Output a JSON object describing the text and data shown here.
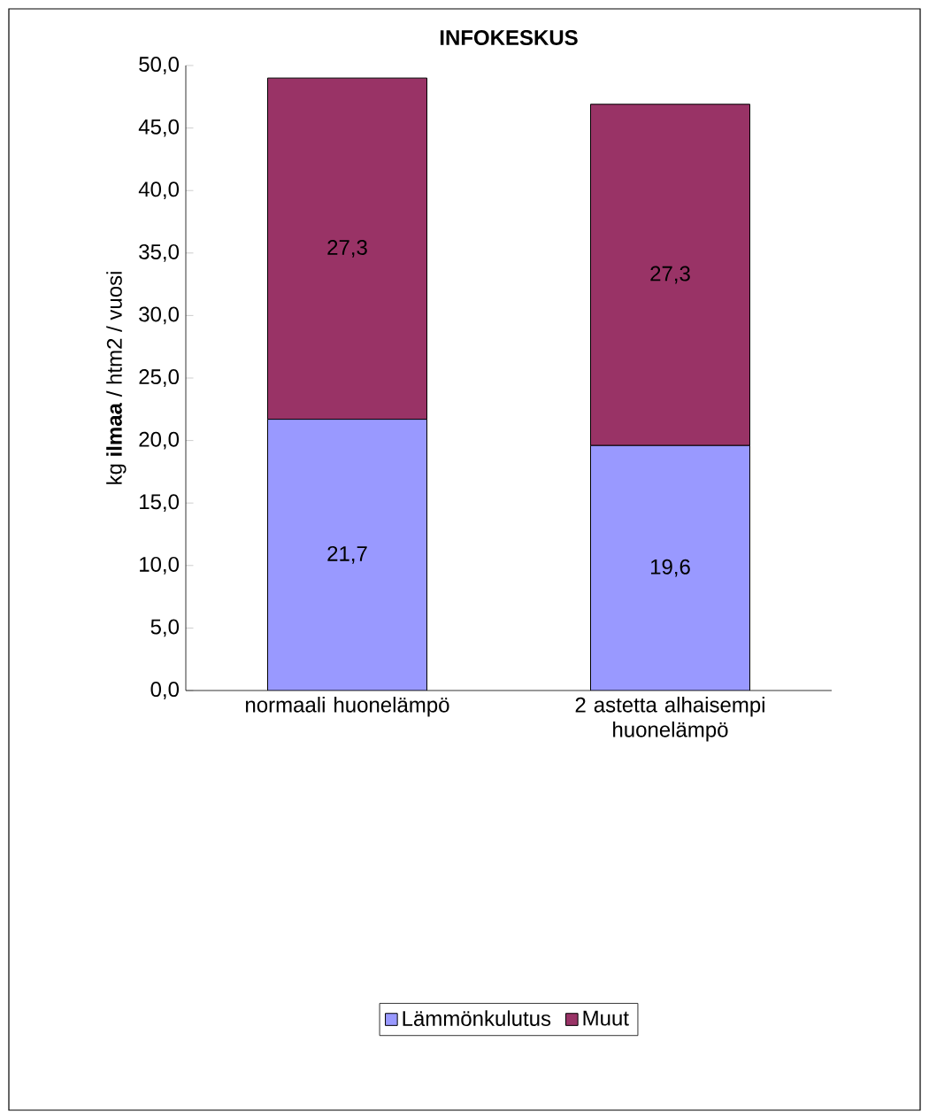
{
  "chart_data": {
    "type": "bar",
    "stacked": true,
    "title": "INFOKESKUS",
    "ylabel": "kg **ilmaa** / htm2 / vuosi",
    "categories": [
      "normaali huonelämpö",
      "2 astetta alhaisempi huonelämpö"
    ],
    "series": [
      {
        "name": "Lämmönkulutus",
        "color": "#9999ff",
        "values": [
          21.7,
          19.6
        ],
        "value_labels": [
          "21,7",
          "19,6"
        ]
      },
      {
        "name": "Muut",
        "color": "#993366",
        "values": [
          27.3,
          27.3
        ],
        "value_labels": [
          "27,3",
          "27,3"
        ]
      }
    ],
    "ylim": [
      0,
      50
    ],
    "yticks": [
      {
        "value": 0,
        "label": "0,0"
      },
      {
        "value": 5,
        "label": "5,0"
      },
      {
        "value": 10,
        "label": "10,0"
      },
      {
        "value": 15,
        "label": "15,0"
      },
      {
        "value": 20,
        "label": "20,0"
      },
      {
        "value": 25,
        "label": "25,0"
      },
      {
        "value": 30,
        "label": "30,0"
      },
      {
        "value": 35,
        "label": "35,0"
      },
      {
        "value": 40,
        "label": "40,0"
      },
      {
        "value": 45,
        "label": "45,0"
      },
      {
        "value": 50,
        "label": "50,0"
      }
    ],
    "legend": "bottom",
    "grid": false
  }
}
